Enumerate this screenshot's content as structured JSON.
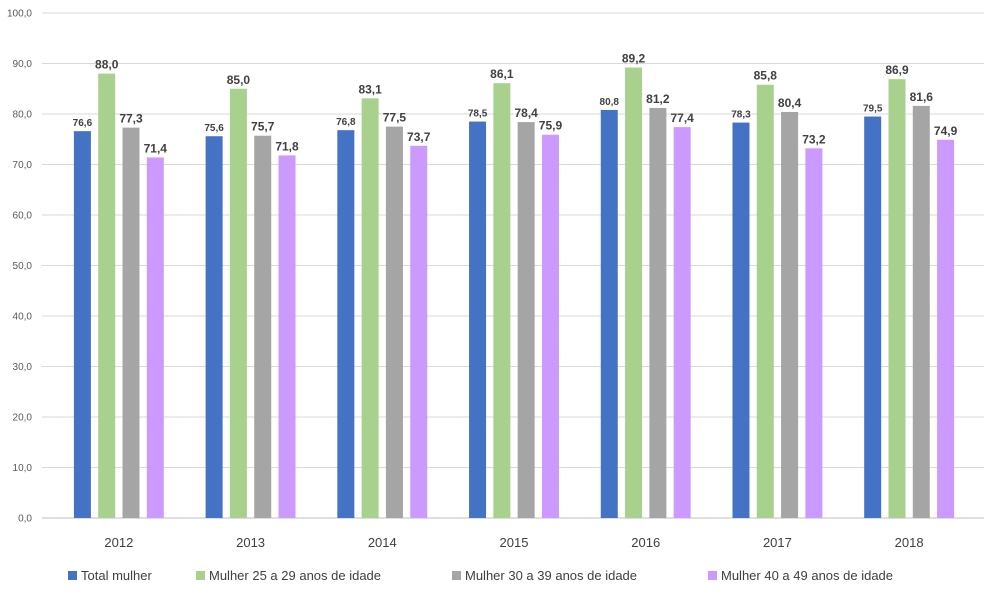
{
  "chart_data": {
    "type": "bar",
    "title": "",
    "xlabel": "",
    "ylabel": "",
    "ylim": [
      0,
      100
    ],
    "yticks": [
      "0,0",
      "10,0",
      "20,0",
      "30,0",
      "40,0",
      "50,0",
      "60,0",
      "70,0",
      "80,0",
      "90,0",
      "100,0"
    ],
    "grid": true,
    "legend_position": "bottom",
    "categories": [
      "2012",
      "2013",
      "2014",
      "2015",
      "2016",
      "2017",
      "2018"
    ],
    "series": [
      {
        "name": "Total mulher",
        "color": "#4472C4",
        "values": [
          76.6,
          75.6,
          76.8,
          78.5,
          80.8,
          78.3,
          79.5
        ],
        "labels": [
          "76,6",
          "75,6",
          "76,8",
          "78,5",
          "80,8",
          "78,3",
          "79,5"
        ]
      },
      {
        "name": "Mulher 25 a 29 anos de idade",
        "color": "#A9D18E",
        "values": [
          88.0,
          85.0,
          83.1,
          86.1,
          89.2,
          85.8,
          86.9
        ],
        "labels": [
          "88,0",
          "85,0",
          "83,1",
          "86,1",
          "89,2",
          "85,8",
          "86,9"
        ]
      },
      {
        "name": "Mulher 30 a 39 anos de idade",
        "color": "#A5A5A5",
        "values": [
          77.3,
          75.7,
          77.5,
          78.4,
          81.2,
          80.4,
          81.6
        ],
        "labels": [
          "77,3",
          "75,7",
          "77,5",
          "78,4",
          "81,2",
          "80,4",
          "81,6"
        ]
      },
      {
        "name": "Mulher 40 a 49 anos de idade",
        "color": "#CC99FF",
        "values": [
          71.4,
          71.8,
          73.7,
          75.9,
          77.4,
          73.2,
          74.9
        ],
        "labels": [
          "71,4",
          "71,8",
          "73,7",
          "75,9",
          "77,4",
          "73,2",
          "74,9"
        ]
      }
    ]
  },
  "colors": {
    "grid": "#D9D9D9",
    "axis": "#BFBFBF"
  }
}
